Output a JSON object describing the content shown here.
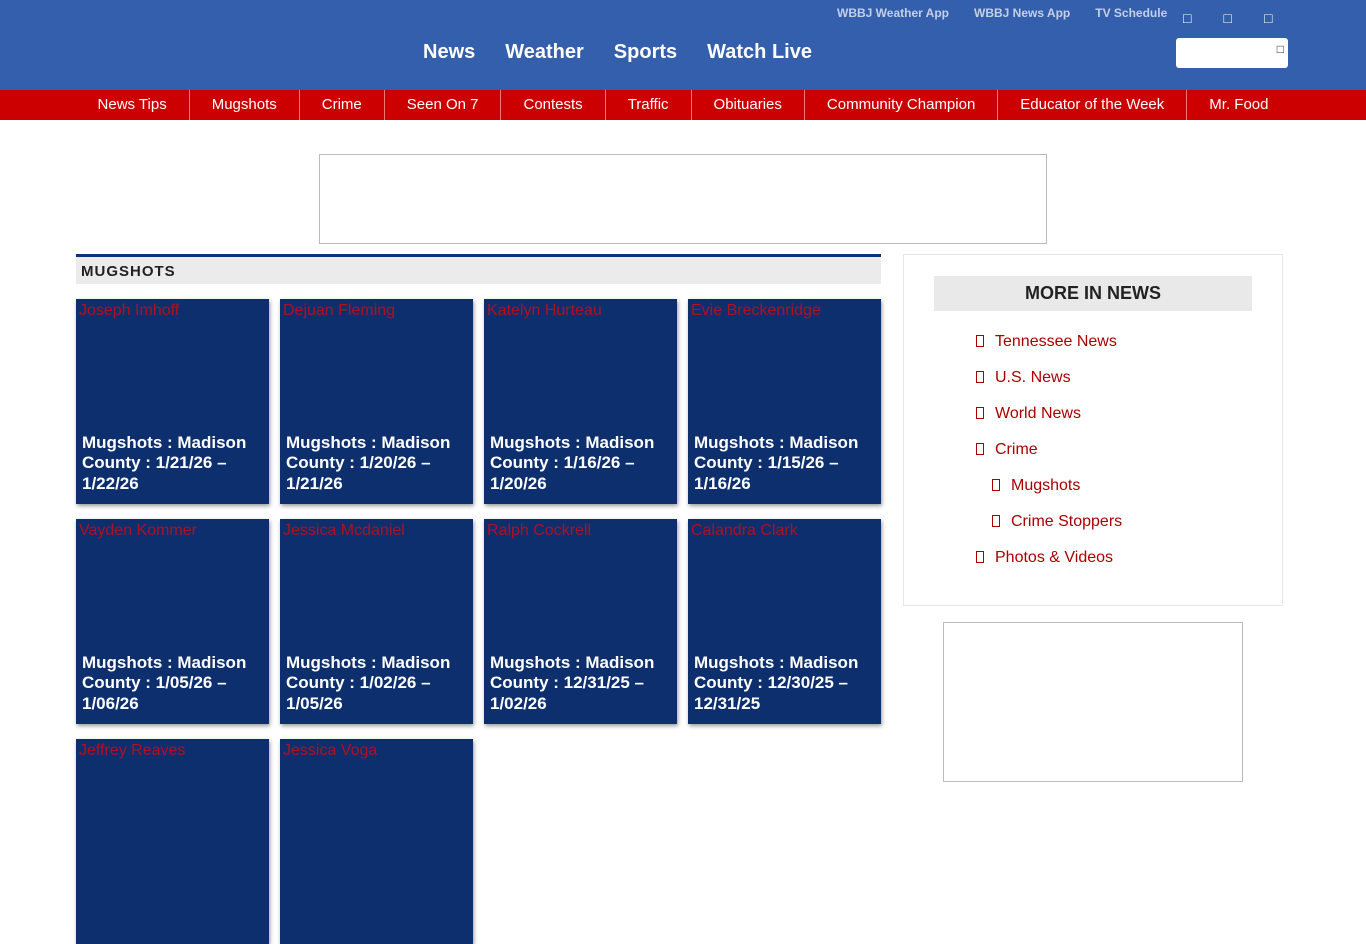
{
  "header": {
    "top_links": [
      "WBBJ Weather App",
      "WBBJ News App",
      "TV Schedule"
    ],
    "social_icons": [
      "facebook-icon",
      "twitter-icon",
      "instagram-icon"
    ],
    "main_nav": [
      "News",
      "Weather",
      "Sports",
      "Watch Live"
    ],
    "search": {
      "placeholder": "",
      "icon": "search-icon"
    }
  },
  "subnav": [
    "News Tips",
    "Mugshots",
    "Crime",
    "Seen On 7",
    "Contests",
    "Traffic",
    "Obituaries",
    "Community Champion",
    "Educator of the Week",
    "Mr. Food"
  ],
  "section_title": "MUGSHOTS",
  "cards": [
    {
      "alt": "Joseph Imhoff",
      "title": "Mugshots : Madison County : 1/21/26 – 1/22/26"
    },
    {
      "alt": "Dejuan Fleming",
      "title": "Mugshots : Madison County : 1/20/26 – 1/21/26"
    },
    {
      "alt": "Katelyn Hurteau",
      "title": "Mugshots : Madison County : 1/16/26 – 1/20/26"
    },
    {
      "alt": "Evie Breckenridge",
      "title": "Mugshots : Madison County : 1/15/26 – 1/16/26"
    },
    {
      "alt": "Vayden Kommer",
      "title": "Mugshots : Madison County : 1/05/26 – 1/06/26"
    },
    {
      "alt": "Jessica Mcdaniel",
      "title": "Mugshots : Madison County : 1/02/26 – 1/05/26"
    },
    {
      "alt": "Ralph Cockrell",
      "title": "Mugshots : Madison County : 12/31/25 – 1/02/26"
    },
    {
      "alt": "Calandra Clark",
      "title": "Mugshots : Madison County : 12/30/25 – 12/31/25"
    },
    {
      "alt": "Jeffrey Reaves",
      "title": ""
    },
    {
      "alt": "Jessica Voga",
      "title": ""
    }
  ],
  "sidebar": {
    "title": "MORE IN NEWS",
    "items": [
      {
        "label": "Tennessee News",
        "sub": false
      },
      {
        "label": "U.S. News",
        "sub": false
      },
      {
        "label": "World News",
        "sub": false
      },
      {
        "label": "Crime",
        "sub": false
      },
      {
        "label": "Mugshots",
        "sub": true
      },
      {
        "label": "Crime Stoppers",
        "sub": true
      },
      {
        "label": "Photos & Videos",
        "sub": false
      }
    ]
  },
  "colors": {
    "header": "#335fad",
    "subnav": "#cc0000",
    "card": "#0d2f6e",
    "link": "#aa0000"
  }
}
